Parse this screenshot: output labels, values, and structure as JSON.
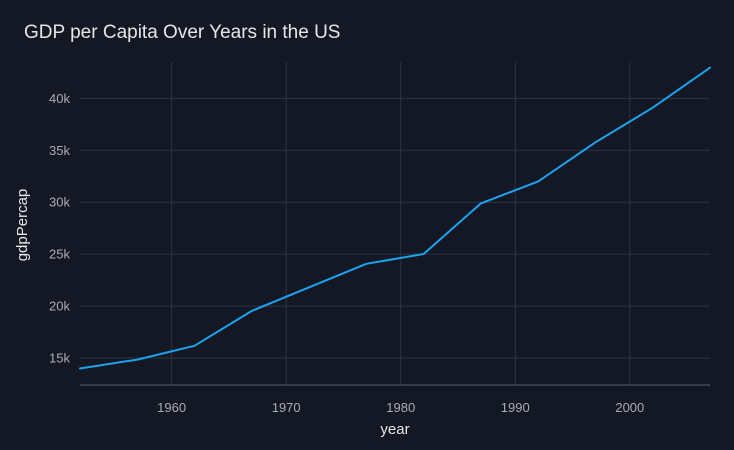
{
  "chart_data": {
    "type": "line",
    "title": "GDP per Capita Over Years in the US",
    "xlabel": "year",
    "ylabel": "gdpPercap",
    "xlim": [
      1952,
      2007
    ],
    "ylim": [
      12400,
      43500
    ],
    "xticks": [
      1960,
      1970,
      1980,
      1990,
      2000
    ],
    "yticks": [
      15000,
      20000,
      25000,
      30000,
      35000,
      40000
    ],
    "ytick_labels": [
      "15k",
      "20k",
      "25k",
      "30k",
      "35k",
      "40k"
    ],
    "grid": true,
    "series": [
      {
        "color": "#1ba3f0",
        "x": [
          1952,
          1957,
          1962,
          1967,
          1972,
          1977,
          1982,
          1987,
          1992,
          1997,
          2002,
          2007
        ],
        "y": [
          13990,
          14847,
          16173,
          19530,
          21806,
          24073,
          25010,
          29884,
          32004,
          35767,
          39097,
          42952
        ]
      }
    ]
  }
}
